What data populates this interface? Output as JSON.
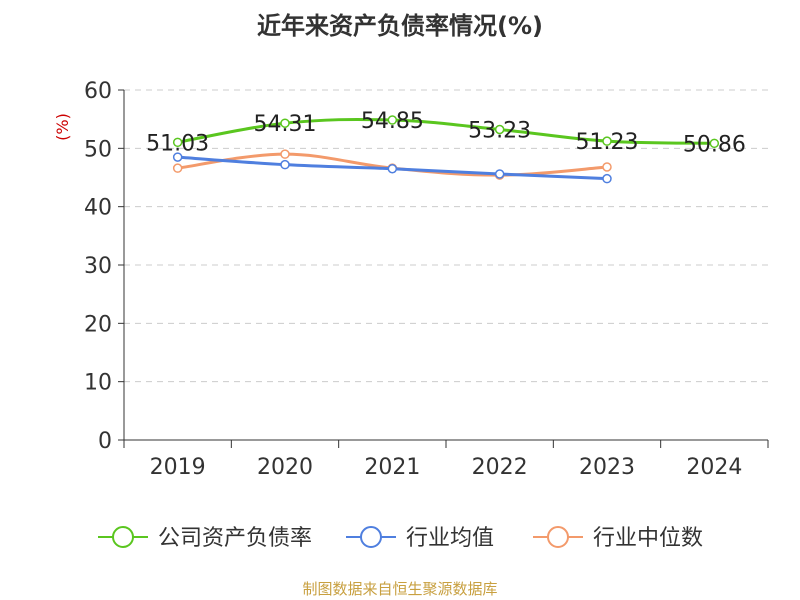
{
  "chart_data": {
    "type": "line",
    "title": "近年来资产负债率情况(%)",
    "ylabel": "(%)",
    "xlabel": "",
    "categories": [
      "2019",
      "2020",
      "2021",
      "2022",
      "2023",
      "2024"
    ],
    "ylim": [
      0,
      60
    ],
    "yticks": [
      0,
      10,
      20,
      30,
      40,
      50,
      60
    ],
    "grid": true,
    "legend_position": "bottom",
    "series": [
      {
        "name": "公司资产负债率",
        "color": "#5ac61f",
        "values": [
          51.03,
          54.31,
          54.85,
          53.23,
          51.23,
          50.86
        ],
        "labels": [
          "51.03",
          "54.31",
          "54.85",
          "53.23",
          "51.23",
          "50.86"
        ]
      },
      {
        "name": "行业均值",
        "color": "#4f7fdf",
        "values": [
          48.5,
          47.2,
          46.5,
          45.6,
          44.8,
          null
        ]
      },
      {
        "name": "行业中位数",
        "color": "#f39a6b",
        "values": [
          46.6,
          49.0,
          46.6,
          45.4,
          46.8,
          null
        ]
      }
    ]
  },
  "source_note": "制图数据来自恒生聚源数据库"
}
